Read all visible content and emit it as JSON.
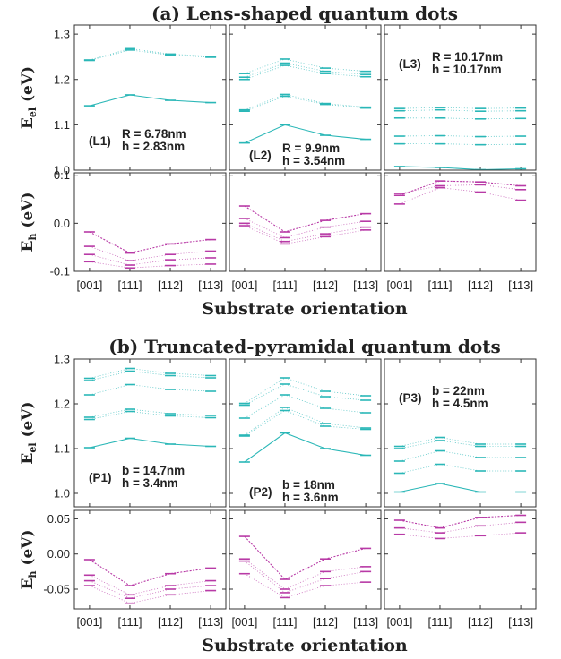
{
  "chart_data": [
    {
      "type": "line",
      "title": "(a) Lens-shaped quantum dots",
      "xlabel": "Substrate orientation",
      "categories": [
        "[001]",
        "[111]",
        "[112]",
        "[113]"
      ],
      "rows": [
        {
          "ylabel_main": "E",
          "ylabel_sub": "el",
          "ylabel_unit": " (eV)",
          "ylim": [
            1.0,
            1.32
          ],
          "yticks": [
            "1.0",
            "1.1",
            "1.2",
            "1.3"
          ],
          "ytick_values": [
            1.0,
            1.1,
            1.2,
            1.3
          ],
          "color": "#2ab7b7",
          "panels": [
            {
              "label": "(L1)",
              "line1": "R = 6.78nm",
              "line2": "h =  2.83nm",
              "label_pos": "bottom-center",
              "series": [
                [
                  1.142,
                  1.166,
                  1.154,
                  1.149
                ],
                [
                  1.243,
                  1.268,
                  1.256,
                  1.251
                ],
                [
                  1.242,
                  1.265,
                  1.254,
                  1.249
                ]
              ]
            },
            {
              "label": "(L2)",
              "line1": "R = 9.9nm",
              "line2": "h = 3.54nm",
              "label_pos": "bottom-right",
              "series": [
                [
                  1.06,
                  1.1,
                  1.077,
                  1.068
                ],
                [
                  1.13,
                  1.163,
                  1.145,
                  1.137
                ],
                [
                  1.133,
                  1.167,
                  1.147,
                  1.139
                ],
                [
                  1.2,
                  1.231,
                  1.213,
                  1.206
                ],
                [
                  1.205,
                  1.236,
                  1.218,
                  1.211
                ],
                [
                  1.213,
                  1.245,
                  1.225,
                  1.218
                ]
              ]
            },
            {
              "label": "(L3)",
              "line1": "R = 10.17nm",
              "line2": "h = 10.17nm",
              "label_pos": "top-right",
              "series": [
                [
                  1.008,
                  1.006,
                  1.001,
                  1.003
                ],
                [
                  1.058,
                  1.058,
                  1.056,
                  1.057
                ],
                [
                  1.075,
                  1.076,
                  1.074,
                  1.075
                ],
                [
                  1.115,
                  1.115,
                  1.113,
                  1.114
                ],
                [
                  1.131,
                  1.133,
                  1.13,
                  1.131
                ],
                [
                  1.136,
                  1.138,
                  1.136,
                  1.137
                ]
              ]
            }
          ]
        },
        {
          "ylabel_main": "E",
          "ylabel_sub": "h",
          "ylabel_unit": " (eV)",
          "ylim": [
            -0.1,
            0.105
          ],
          "yticks": [
            "-0.1",
            "0.0",
            "0.1"
          ],
          "ytick_values": [
            -0.1,
            0.0,
            0.1
          ],
          "color": "#b83aa6",
          "panels": [
            {
              "series": [
                [
                  -0.018,
                  -0.062,
                  -0.043,
                  -0.034
                ],
                [
                  -0.048,
                  -0.078,
                  -0.065,
                  -0.058
                ],
                [
                  -0.065,
                  -0.087,
                  -0.076,
                  -0.072
                ],
                [
                  -0.08,
                  -0.093,
                  -0.088,
                  -0.085
                ]
              ]
            },
            {
              "series": [
                [
                  0.036,
                  -0.018,
                  0.006,
                  0.02
                ],
                [
                  0.01,
                  -0.03,
                  -0.008,
                  0.004
                ],
                [
                  0.0,
                  -0.038,
                  -0.022,
                  -0.008
                ],
                [
                  -0.005,
                  -0.043,
                  -0.028,
                  -0.014
                ]
              ]
            },
            {
              "series": [
                [
                  0.058,
                  0.088,
                  0.086,
                  0.078
                ],
                [
                  0.04,
                  0.074,
                  0.065,
                  0.048
                ],
                [
                  0.062,
                  0.078,
                  0.08,
                  0.07
                ]
              ]
            }
          ]
        }
      ]
    },
    {
      "type": "line",
      "title": "(b) Truncated-pyramidal quantum dots",
      "xlabel": "Substrate orientation",
      "categories": [
        "[001]",
        "[111]",
        "[112]",
        "[113]"
      ],
      "rows": [
        {
          "ylabel_main": "E",
          "ylabel_sub": "el",
          "ylabel_unit": " (eV)",
          "ylim": [
            0.97,
            1.3
          ],
          "yticks": [
            "1.0",
            "1.1",
            "1.2",
            "1.3"
          ],
          "ytick_values": [
            1.0,
            1.1,
            1.2,
            1.3
          ],
          "color": "#2ab7b7",
          "panels": [
            {
              "label": "(P1)",
              "line1": "b = 14.7nm",
              "line2": "h =  3.4nm",
              "label_pos": "bottom-center",
              "series": [
                [
                  1.102,
                  1.123,
                  1.11,
                  1.105
                ],
                [
                  1.165,
                  1.183,
                  1.173,
                  1.169
                ],
                [
                  1.17,
                  1.188,
                  1.178,
                  1.174
                ],
                [
                  1.22,
                  1.243,
                  1.232,
                  1.228
                ],
                [
                  1.252,
                  1.273,
                  1.263,
                  1.258
                ],
                [
                  1.257,
                  1.279,
                  1.268,
                  1.263
                ]
              ]
            },
            {
              "label": "(P2)",
              "line1": "b = 18nm",
              "line2": "h =  3.6nm",
              "label_pos": "bottom-right",
              "series": [
                [
                  1.07,
                  1.135,
                  1.1,
                  1.085
                ],
                [
                  1.128,
                  1.185,
                  1.15,
                  1.143
                ],
                [
                  1.13,
                  1.192,
                  1.156,
                  1.146
                ],
                [
                  1.168,
                  1.22,
                  1.19,
                  1.18
                ],
                [
                  1.197,
                  1.244,
                  1.216,
                  1.208
                ],
                [
                  1.201,
                  1.258,
                  1.228,
                  1.218
                ]
              ]
            },
            {
              "label": "(P3)",
              "line1": "b = 22nm",
              "line2": "h =  4.5nm",
              "label_pos": "top-right",
              "series": [
                [
                  1.003,
                  1.022,
                  1.003,
                  1.003
                ],
                [
                  1.045,
                  1.065,
                  1.05,
                  1.05
                ],
                [
                  1.072,
                  1.095,
                  1.08,
                  1.08
                ],
                [
                  1.1,
                  1.118,
                  1.105,
                  1.105
                ],
                [
                  1.105,
                  1.125,
                  1.11,
                  1.11
                ]
              ]
            }
          ]
        },
        {
          "ylabel_main": "E",
          "ylabel_sub": "h",
          "ylabel_unit": " (eV)",
          "ylim": [
            -0.078,
            0.062
          ],
          "yticks": [
            "0.05",
            "0.00",
            "-0.05"
          ],
          "ytick_values": [
            0.05,
            0.0,
            -0.05
          ],
          "color": "#b83aa6",
          "panels": [
            {
              "series": [
                [
                  -0.008,
                  -0.045,
                  -0.028,
                  -0.02
                ],
                [
                  -0.03,
                  -0.058,
                  -0.045,
                  -0.038
                ],
                [
                  -0.038,
                  -0.063,
                  -0.05,
                  -0.045
                ],
                [
                  -0.045,
                  -0.07,
                  -0.058,
                  -0.052
                ]
              ]
            },
            {
              "series": [
                [
                  0.025,
                  -0.036,
                  -0.007,
                  0.008
                ],
                [
                  -0.007,
                  -0.05,
                  -0.025,
                  -0.018
                ],
                [
                  -0.01,
                  -0.055,
                  -0.035,
                  -0.025
                ],
                [
                  -0.028,
                  -0.062,
                  -0.045,
                  -0.04
                ]
              ]
            },
            {
              "series": [
                [
                  0.048,
                  0.037,
                  0.052,
                  0.055
                ],
                [
                  0.037,
                  0.03,
                  0.04,
                  0.045
                ],
                [
                  0.028,
                  0.022,
                  0.026,
                  0.03
                ]
              ]
            }
          ]
        }
      ]
    }
  ]
}
